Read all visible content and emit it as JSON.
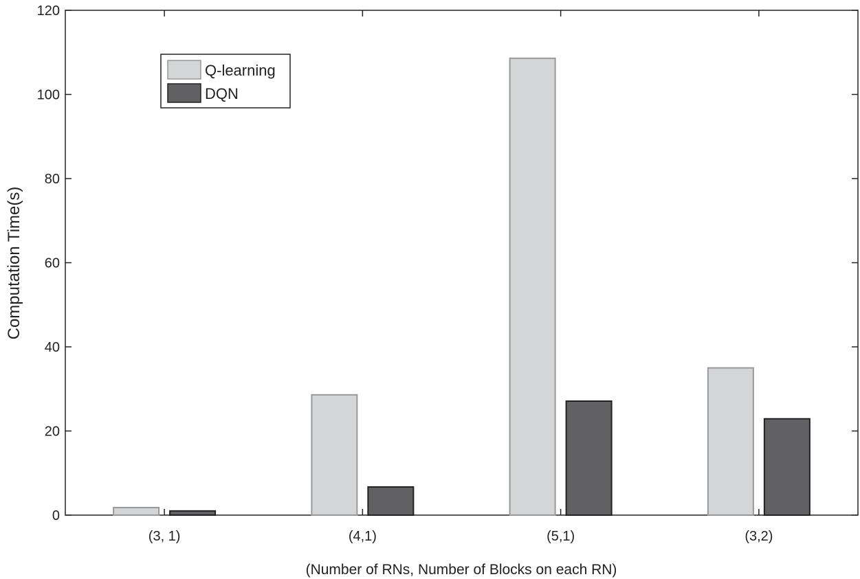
{
  "chart_data": {
    "type": "bar",
    "categories": [
      "(3, 1)",
      "(4,1)",
      "(5,1)",
      "(3,2)"
    ],
    "series": [
      {
        "name": "Q-learning",
        "values": [
          1.8,
          28.6,
          108.6,
          35.0
        ],
        "color": "#d4d5d6",
        "stroke": "#999999"
      },
      {
        "name": "DQN",
        "values": [
          1.0,
          6.7,
          27.1,
          22.9
        ],
        "color": "#616163",
        "stroke": "#222222"
      }
    ],
    "xlabel": "(Number of RNs, Number of Blocks on each RN)",
    "ylabel": "Computation Time(s)",
    "ylim": [
      0,
      120
    ],
    "yticks": [
      0,
      20,
      40,
      60,
      80,
      100,
      120
    ],
    "grid": false,
    "legend_position": "top-left"
  }
}
